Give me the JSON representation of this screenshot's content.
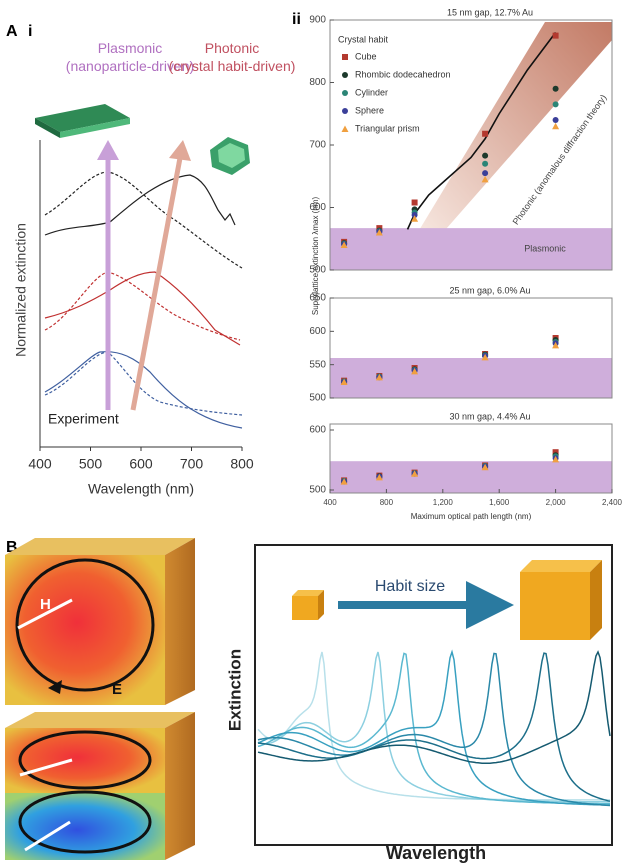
{
  "panel_labels": {
    "a": "A",
    "a_i": "i",
    "a_ii": "ii",
    "b": "B"
  },
  "field_labels": {
    "h": "H",
    "e": "E"
  },
  "chart_data": [
    {
      "type": "spectra",
      "title_plasmonic": "Plasmonic (nanoparticle-driven)",
      "title_photonic": "Photonic (crystal habit-driven)",
      "xlabel": "Wavelength (nm)",
      "ylabel": "Normalized extinction",
      "annotation": "Experiment",
      "xlim": [
        400,
        800
      ],
      "xticks": [
        400,
        500,
        600,
        700,
        800
      ]
    },
    {
      "type": "scatter",
      "title": "15 nm gap, 12.7% Au",
      "ylabel": "Superlattice extinction λmax (nm)",
      "legend_title": "Crystal habit",
      "x": [
        500,
        750,
        1000,
        1500,
        2000
      ],
      "xlim": [
        400,
        2400
      ],
      "ylim": [
        500,
        900
      ],
      "yticks": [
        500,
        600,
        700,
        800,
        900
      ],
      "band_top": 567,
      "band_label": "Plasmonic",
      "band_color": "#cfaedb",
      "fit": {
        "x": [
          950,
          1000,
          1100,
          1200,
          1400,
          1500,
          1600,
          1800,
          2000
        ],
        "values": [
          565,
          590,
          620,
          640,
          680,
          710,
          750,
          820,
          880
        ]
      },
      "fit_label": "Photonic (anomalous diffraction theory)",
      "series": [
        {
          "name": "Cube",
          "color": "#b3392f",
          "values": [
            545,
            567,
            608,
            718,
            875
          ]
        },
        {
          "name": "Rhombic dodecahedron",
          "color": "#1d3a2c",
          "values": [
            543,
            563,
            597,
            683,
            790
          ]
        },
        {
          "name": "Cylinder",
          "color": "#2b8576",
          "values": [
            542,
            562,
            592,
            670,
            765
          ]
        },
        {
          "name": "Sphere",
          "color": "#3b3f99",
          "values": [
            541,
            561,
            588,
            655,
            740
          ]
        },
        {
          "name": "Triangular prism",
          "color": "#f0a040",
          "values": [
            540,
            560,
            582,
            645,
            730
          ]
        }
      ]
    },
    {
      "type": "scatter",
      "title": "25 nm gap, 6.0% Au",
      "x": [
        500,
        750,
        1000,
        1500,
        2000
      ],
      "xlim": [
        400,
        2400
      ],
      "ylim": [
        500,
        650
      ],
      "yticks": [
        500,
        550,
        600,
        650
      ],
      "band_top": 560,
      "band_color": "#cfaedb",
      "series": [
        {
          "color": "#b3392f",
          "values": [
            526,
            533,
            545,
            566,
            590
          ]
        },
        {
          "color": "#1d3a2c",
          "values": [
            525,
            532,
            543,
            565,
            587
          ]
        },
        {
          "color": "#2b8576",
          "values": [
            525,
            532,
            542,
            564,
            584
          ]
        },
        {
          "color": "#3b3f99",
          "values": [
            524,
            531,
            541,
            563,
            582
          ]
        },
        {
          "color": "#f0a040",
          "values": [
            524,
            531,
            540,
            561,
            579
          ]
        }
      ]
    },
    {
      "type": "scatter",
      "title": "30 nm gap, 4.4% Au",
      "xlabel": "Maximum optical path length (nm)",
      "x": [
        500,
        750,
        1000,
        1500,
        2000
      ],
      "xlim": [
        400,
        2400
      ],
      "ylim": [
        495,
        610
      ],
      "yticks": [
        500,
        600
      ],
      "xticks": [
        400,
        800,
        {
          "value": 1200,
          "label": "1,200"
        },
        {
          "value": 1600,
          "label": "1,600"
        },
        {
          "value": 2000,
          "label": "2,000"
        },
        {
          "value": 2400,
          "label": "2,400"
        }
      ],
      "band_top": 548,
      "band_color": "#cfaedb",
      "series": [
        {
          "color": "#b3392f",
          "values": [
            516,
            524,
            529,
            541,
            563
          ]
        },
        {
          "color": "#1d3a2c",
          "values": [
            515,
            523,
            528,
            540,
            558
          ]
        },
        {
          "color": "#2b8576",
          "values": [
            515,
            522,
            528,
            540,
            556
          ]
        },
        {
          "color": "#3b3f99",
          "values": [
            514,
            522,
            527,
            539,
            553
          ]
        },
        {
          "color": "#f0a040",
          "values": [
            514,
            521,
            527,
            538,
            551
          ]
        }
      ]
    },
    {
      "type": "schematic",
      "annotation": "Habit size",
      "xlabel": "Wavelength",
      "ylabel": "Extinction"
    }
  ]
}
